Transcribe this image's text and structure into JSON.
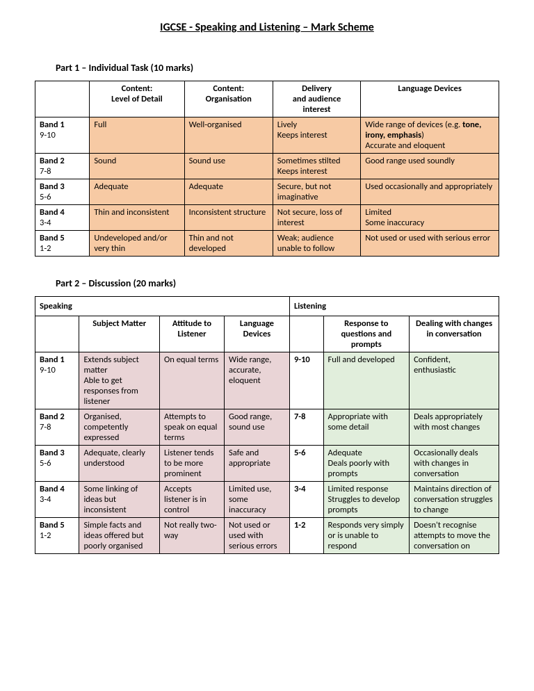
{
  "title": "IGCSE - Speaking and Listening – Mark Scheme",
  "part1": {
    "heading": "Part 1 – Individual Task (10 marks)",
    "colors": {
      "bg": "#f7caa4",
      "border": "#000000"
    },
    "columns": [
      "Content:\nLevel of Detail",
      "Content:\nOrganisation",
      "Delivery\nand audience\ninterest",
      "Language Devices"
    ],
    "rows": [
      {
        "band": "Band 1",
        "range": "9-10",
        "cells": [
          "Full",
          "Well-organised",
          "Lively\nKeeps interest",
          "Wide range of devices (e.g. **tone, irony, emphasis**)\nAccurate and eloquent"
        ]
      },
      {
        "band": "Band 2",
        "range": "7-8",
        "cells": [
          "Sound",
          "Sound use",
          "Sometimes stilted\nKeeps interest",
          "Good range used soundly"
        ]
      },
      {
        "band": "Band 3",
        "range": "5-6",
        "cells": [
          "Adequate",
          "Adequate",
          "Secure, but not imaginative",
          "Used occasionally and appropriately"
        ]
      },
      {
        "band": "Band 4",
        "range": "3-4",
        "cells": [
          "Thin and inconsistent",
          "Inconsistent structure",
          "Not secure, loss of interest",
          "Limited\nSome inaccuracy"
        ]
      },
      {
        "band": "Band 5",
        "range": "1-2",
        "cells": [
          "Undeveloped and/or very thin",
          "Thin and not developed",
          "Weak; audience unable to follow",
          "Not used or used with serious error"
        ]
      }
    ]
  },
  "part2": {
    "heading": "Part 2 – Discussion (20 marks)",
    "section_labels": [
      "Speaking",
      "Listening"
    ],
    "colors": {
      "speaking_bg": "#e9d4d6",
      "listening_bg": "#e1eedc",
      "border": "#000000"
    },
    "speaking_columns": [
      "Subject Matter",
      "Attitude to Listener",
      "Language Devices"
    ],
    "listening_columns": [
      "Response to questions and prompts",
      "Dealing with changes in conversation"
    ],
    "rows": [
      {
        "band": "Band 1",
        "range": "9-10",
        "lrange": "9-10",
        "speaking": [
          "Extends subject matter\nAble to get responses from listener",
          "On equal terms",
          "Wide range, accurate, eloquent"
        ],
        "listening": [
          "Full and developed",
          "Confident, enthusiastic"
        ]
      },
      {
        "band": "Band 2",
        "range": "7-8",
        "lrange": "7-8",
        "speaking": [
          "Organised, competently expressed",
          "Attempts to speak on equal terms",
          "Good range, sound use"
        ],
        "listening": [
          "Appropriate with some detail",
          "Deals appropriately with most changes"
        ]
      },
      {
        "band": "Band 3",
        "range": "5-6",
        "lrange": "5-6",
        "speaking": [
          "Adequate, clearly understood",
          "Listener tends to be more prominent",
          "Safe and appropriate"
        ],
        "listening": [
          "Adequate\nDeals poorly with prompts",
          "Occasionally deals with changes in conversation"
        ]
      },
      {
        "band": "Band 4",
        "range": "3-4",
        "lrange": "3-4",
        "speaking": [
          "Some linking of ideas but inconsistent",
          "Accepts listener is in control",
          "Limited use, some inaccuracy"
        ],
        "listening": [
          "Limited response\nStruggles to develop prompts",
          "Maintains direction of conversation struggles to change"
        ]
      },
      {
        "band": "Band 5",
        "range": "1-2",
        "lrange": "1-2",
        "speaking": [
          "Simple facts and ideas offered but poorly organised",
          "Not really two-way",
          "Not used or used with serious errors"
        ],
        "listening": [
          "Responds very simply or is unable to respond",
          "Doesn't recognise attempts to move the conversation on"
        ]
      }
    ]
  }
}
